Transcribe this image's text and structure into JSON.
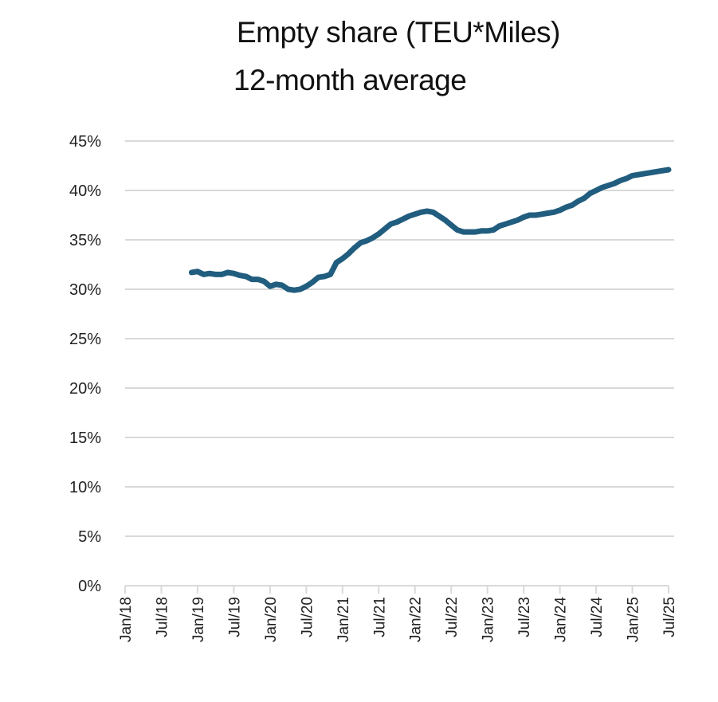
{
  "chart_data": {
    "type": "line",
    "title": "Empty share (TEU*Miles)",
    "subtitle": "12-month average",
    "xlabel": "",
    "ylabel": "",
    "ylim": [
      0,
      45
    ],
    "yticks": [
      "0%",
      "5%",
      "10%",
      "15%",
      "20%",
      "25%",
      "30%",
      "35%",
      "40%",
      "45%"
    ],
    "ytick_values": [
      0,
      5,
      10,
      15,
      20,
      25,
      30,
      35,
      40,
      45
    ],
    "xticks": [
      "Jan/18",
      "Jul/18",
      "Jan/19",
      "Jul/19",
      "Jan/20",
      "Jul/20",
      "Jan/21",
      "Jul/21",
      "Jan/22",
      "Jul/22",
      "Jan/23",
      "Jul/23",
      "Jan/24",
      "Jul/24",
      "Jan/25",
      "Jul/25"
    ],
    "xrange_months": [
      0,
      90
    ],
    "grid": true,
    "legend": "none",
    "series": [
      {
        "name": "Empty share (TEU*Miles), 12-month average",
        "color": "#215d7e",
        "x_months": [
          11,
          12,
          13,
          14,
          15,
          16,
          17,
          18,
          19,
          20,
          21,
          22,
          23,
          24,
          25,
          26,
          27,
          28,
          29,
          30,
          31,
          32,
          33,
          34,
          35,
          36,
          37,
          38,
          39,
          40,
          41,
          42,
          43,
          44,
          45,
          46,
          47,
          48,
          49,
          50,
          51,
          52,
          53,
          54,
          55,
          56,
          57,
          58,
          59,
          60,
          61,
          62,
          63,
          64,
          65,
          66,
          67,
          68,
          69,
          70,
          71,
          72,
          73,
          74,
          75,
          76,
          77,
          78,
          79,
          80,
          81,
          82,
          83,
          84,
          85,
          86,
          87,
          88,
          89,
          90
        ],
        "values": [
          31.7,
          31.8,
          31.5,
          31.6,
          31.5,
          31.5,
          31.7,
          31.6,
          31.4,
          31.3,
          31.0,
          31.0,
          30.8,
          30.3,
          30.5,
          30.4,
          30.0,
          29.9,
          30.0,
          30.3,
          30.7,
          31.2,
          31.3,
          31.5,
          32.7,
          33.1,
          33.6,
          34.2,
          34.7,
          34.9,
          35.2,
          35.6,
          36.1,
          36.6,
          36.8,
          37.1,
          37.4,
          37.6,
          37.8,
          37.9,
          37.8,
          37.4,
          37.0,
          36.5,
          36.0,
          35.8,
          35.8,
          35.8,
          35.9,
          35.9,
          36.0,
          36.4,
          36.6,
          36.8,
          37.0,
          37.3,
          37.5,
          37.5,
          37.6,
          37.7,
          37.8,
          38.0,
          38.3,
          38.5,
          38.9,
          39.2,
          39.7,
          40.0,
          40.3,
          40.5,
          40.7,
          41.0,
          41.2,
          41.5,
          41.6,
          41.7,
          41.8,
          41.9,
          42.0,
          42.1
        ]
      }
    ]
  }
}
